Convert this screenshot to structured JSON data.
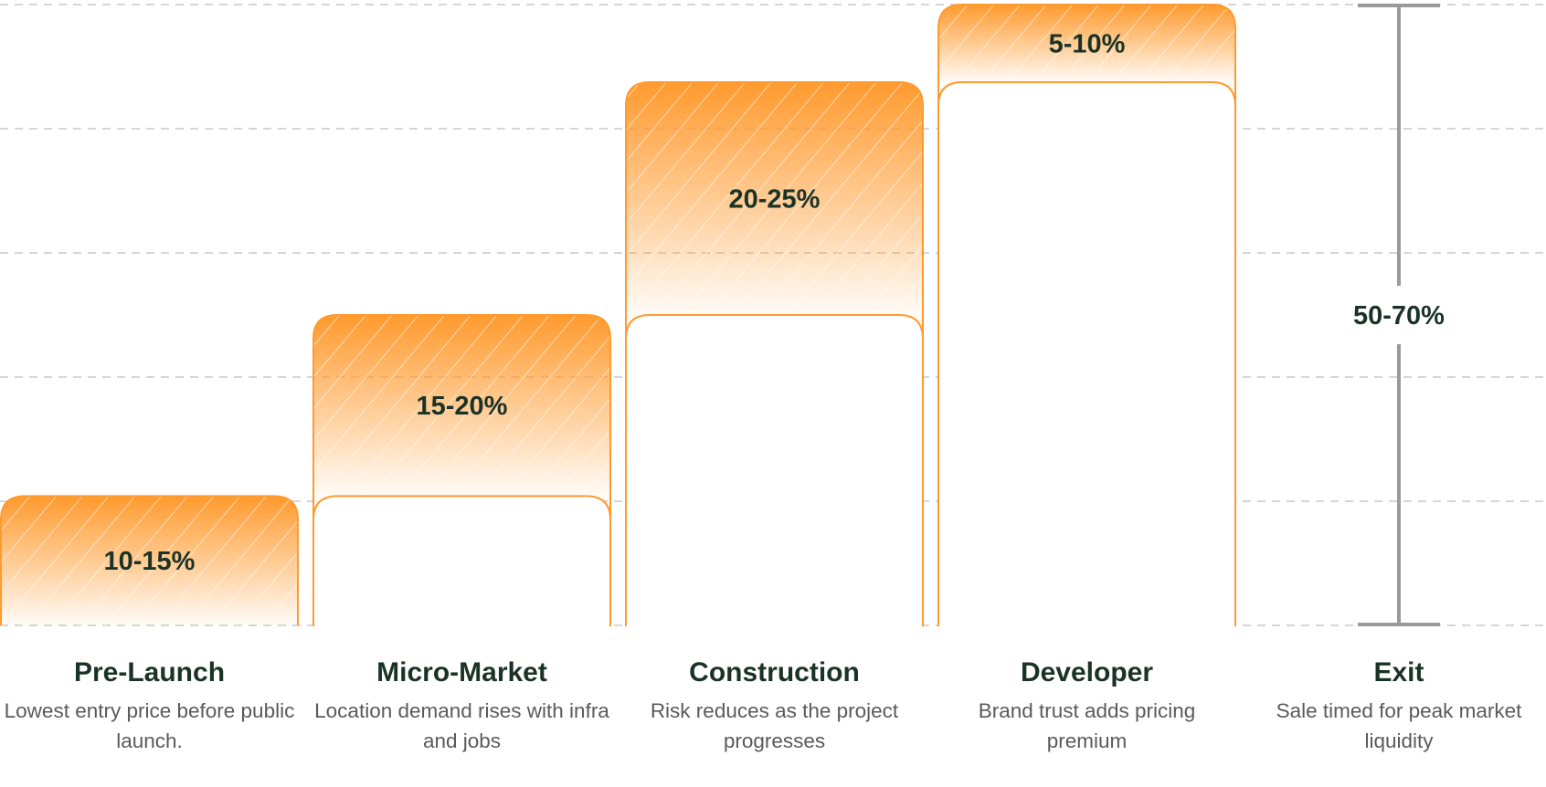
{
  "chart_data": {
    "type": "bar",
    "subtype": "waterfall",
    "categories": [
      "Pre-Launch",
      "Micro-Market",
      "Construction",
      "Developer",
      "Exit"
    ],
    "descriptions": [
      "Lowest entry price before public launch.",
      "Location demand rises with infra and jobs",
      "Risk reduces as the project progresses",
      "Brand trust adds pricing premium",
      "Sale timed for peak market liquidity"
    ],
    "steps": [
      {
        "label": "10-15%",
        "low": 10,
        "high": 15
      },
      {
        "label": "15-20%",
        "low": 15,
        "high": 20
      },
      {
        "label": "20-25%",
        "low": 20,
        "high": 25
      },
      {
        "label": "5-10%",
        "low": 5,
        "high": 10
      }
    ],
    "total": {
      "label": "50-70%",
      "low": 50,
      "high": 70
    },
    "grid": true,
    "colors": {
      "bar": "#ff9a2e",
      "text": "#1a3326",
      "desc": "#5a5a5a",
      "whisker": "#9a9a9a",
      "grid": "#c8c8c8"
    }
  }
}
